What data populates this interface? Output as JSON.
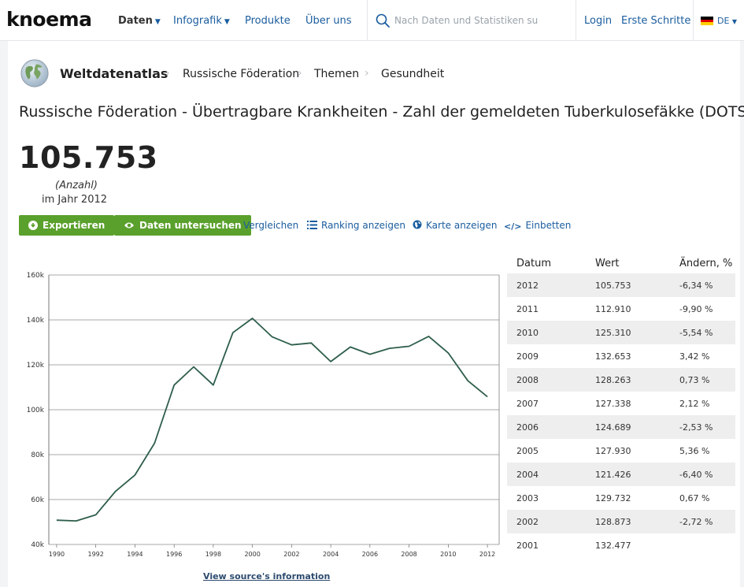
{
  "nav": {
    "logo": "knoema",
    "items": [
      {
        "label": "Daten",
        "caret": true,
        "active": true
      },
      {
        "label": "Infografik",
        "caret": true
      },
      {
        "label": "Produkte"
      },
      {
        "label": "Über uns"
      }
    ],
    "search_placeholder": "Nach Daten und Statistiken su",
    "login": "Login",
    "first_steps": "Erste Schritte",
    "language": "DE"
  },
  "breadcrumb": [
    "Weltdatenatlas",
    "Russische Föderation",
    "Themen",
    "Gesundheit"
  ],
  "title": "Russische Föderation - Übertragbare Krankheiten - Zahl der gemeldeten Tuberkulosefäkke (DOTS)",
  "headline": {
    "value": "105.753",
    "unit": "(Anzahl)",
    "year": "im Jahr 2012"
  },
  "actions": {
    "export": "Exportieren",
    "explore": "Daten untersuchen",
    "compare": "Vergleichen",
    "ranking": "Ranking anzeigen",
    "map": "Karte anzeigen",
    "embed": "Einbetten"
  },
  "source_link": "View source's information",
  "table": {
    "headers": [
      "Datum",
      "Wert",
      "Ändern, %"
    ],
    "rows": [
      [
        "2012",
        "105.753",
        "-6,34 %"
      ],
      [
        "2011",
        "112.910",
        "-9,90 %"
      ],
      [
        "2010",
        "125.310",
        "-5,54 %"
      ],
      [
        "2009",
        "132.653",
        "3,42 %"
      ],
      [
        "2008",
        "128.263",
        "0,73 %"
      ],
      [
        "2007",
        "127.338",
        "2,12 %"
      ],
      [
        "2006",
        "124.689",
        "-2,53 %"
      ],
      [
        "2005",
        "127.930",
        "5,36 %"
      ],
      [
        "2004",
        "121.426",
        "-6,40 %"
      ],
      [
        "2003",
        "129.732",
        "0,67 %"
      ],
      [
        "2002",
        "128.873",
        "-2,72 %"
      ],
      [
        "2001",
        "132.477",
        ""
      ]
    ]
  },
  "chart_data": {
    "type": "line",
    "x": [
      1990,
      1991,
      1992,
      1993,
      1994,
      1995,
      1996,
      1997,
      1998,
      1999,
      2000,
      2001,
      2002,
      2003,
      2004,
      2005,
      2006,
      2007,
      2008,
      2009,
      2010,
      2011,
      2012
    ],
    "series": [
      {
        "values": [
          50800,
          50500,
          53200,
          63600,
          70900,
          85100,
          111000,
          119100,
          111000,
          134300,
          140700,
          132477,
          128873,
          129732,
          121426,
          127930,
          124689,
          127338,
          128263,
          132653,
          125310,
          112910,
          105753
        ]
      }
    ],
    "yticks": [
      "40k",
      "60k",
      "80k",
      "100k",
      "120k",
      "140k",
      "160k"
    ],
    "ylim": [
      40000,
      160000
    ],
    "xlim": [
      1989.6,
      2012.6
    ],
    "xticks": [
      "1990",
      "1992",
      "1994",
      "1996",
      "1998",
      "2000",
      "2002",
      "2004",
      "2006",
      "2008",
      "2010",
      "2012"
    ],
    "line_color": "#2e5e4a",
    "grid": true,
    "legend": "none"
  },
  "colors": {
    "accent_green": "#5aa02c",
    "link_blue": "#1a5c9e"
  }
}
